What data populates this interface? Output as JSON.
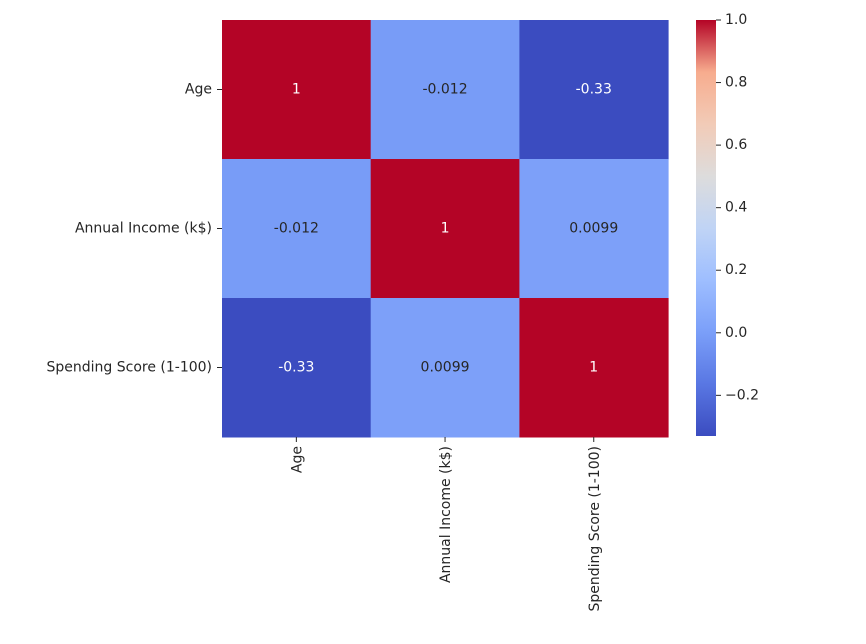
{
  "chart_data": {
    "type": "heatmap",
    "title": "",
    "xlabel": "",
    "ylabel": "",
    "x_categories": [
      "Age",
      "Annual Income (k$)",
      "Spending Score (1-100)"
    ],
    "y_categories": [
      "Age",
      "Annual Income (k$)",
      "Spending Score (1-100)"
    ],
    "values": [
      [
        1,
        -0.012,
        -0.33
      ],
      [
        -0.012,
        1,
        0.0099
      ],
      [
        -0.33,
        0.0099,
        1
      ]
    ],
    "annotations": [
      [
        "1",
        "-0.012",
        "-0.33"
      ],
      [
        "-0.012",
        "1",
        "0.0099"
      ],
      [
        "-0.33",
        "0.0099",
        "1"
      ]
    ],
    "colormap": "coolwarm",
    "color_range": [
      -0.33,
      1.0
    ],
    "colorbar": {
      "ticks": [
        1.0,
        0.8,
        0.6,
        0.4,
        0.2,
        0.0,
        -0.2
      ],
      "tick_labels": [
        "1.0",
        "0.8",
        "0.6",
        "0.4",
        "0.2",
        "0.0",
        "−0.2"
      ],
      "placement": "right"
    },
    "grid": false,
    "legend": "none"
  }
}
